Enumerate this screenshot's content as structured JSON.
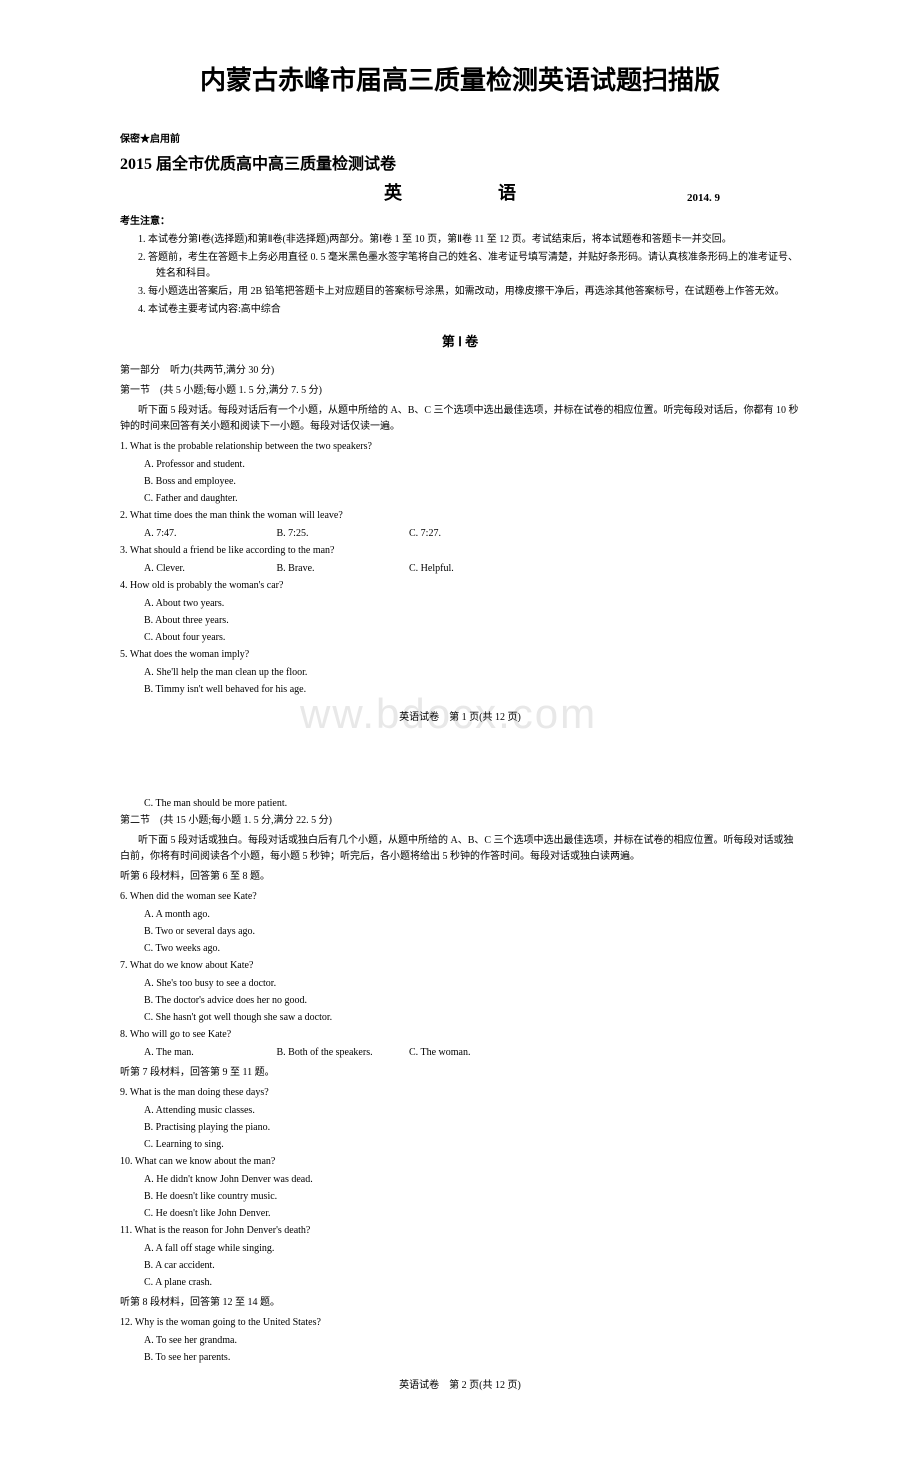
{
  "page_title": "内蒙古赤峰市届高三质量检测英语试题扫描版",
  "watermark": "ww.bdocx.com",
  "confidential": "保密★启用前",
  "exam": {
    "title_line1": "2015 届全市优质高中高三质量检测试卷",
    "title_line2": "英　　语",
    "date": "2014. 9"
  },
  "notice": {
    "header": "考生注意：",
    "items": [
      "1. 本试卷分第Ⅰ卷(选择题)和第Ⅱ卷(非选择题)两部分。第Ⅰ卷 1 至 10 页，第Ⅱ卷 11 至 12 页。考试结束后，将本试题卷和答题卡一并交回。",
      "2. 答题前，考生在答题卡上务必用直径 0. 5 毫米黑色墨水签字笔将自己的姓名、准考证号填写清楚，并贴好条形码。请认真核准条形码上的准考证号、姓名和科目。",
      "3. 每小题选出答案后，用 2B 铅笔把答题卡上对应题目的答案标号涂黑，如需改动，用橡皮擦干净后，再选涂其他答案标号，在试题卷上作答无效。",
      "4. 本试卷主要考试内容:高中综合"
    ]
  },
  "part1_header": "第 Ⅰ 卷",
  "section1": {
    "title": "第一部分　听力(共两节,满分 30 分)",
    "sub1": "第一节　(共 5 小题;每小题 1. 5 分,满分 7. 5 分)",
    "instruction1": "听下面 5 段对话。每段对话后有一个小题，从题中所给的 A、B、C 三个选项中选出最佳选项，并标在试卷的相应位置。听完每段对话后，你都有 10 秒钟的时间来回答有关小题和阅读下一小题。每段对话仅读一遍。"
  },
  "questions_p1": [
    {
      "q": "1. What is the probable relationship between the two speakers?",
      "opts": [
        "A. Professor and student.",
        "B. Boss and employee.",
        "C. Father and daughter."
      ]
    },
    {
      "q": "2. What time does the man think the woman will leave?",
      "opts_row": [
        "A. 7:47.",
        "B. 7:25.",
        "C. 7:27."
      ]
    },
    {
      "q": "3. What should a friend be like according to the man?",
      "opts_row": [
        "A. Clever.",
        "B. Brave.",
        "C. Helpful."
      ]
    },
    {
      "q": "4. How old is probably the woman's car?",
      "opts": [
        "A. About two years.",
        "B. About three years.",
        "C. About four years."
      ]
    },
    {
      "q": "5. What does the woman imply?",
      "opts": [
        "A. She'll help the man clean up the floor.",
        "B. Timmy isn't well behaved for his age."
      ]
    }
  ],
  "footer1": "英语试卷　第 1 页(共 12 页)",
  "q5_cont": "C. The man should be more patient.",
  "section2": {
    "sub": "第二节　(共 15 小题;每小题 1. 5 分,满分 22. 5 分)",
    "instruction": "听下面 5 段对话或独白。每段对话或独白后有几个小题，从题中所给的 A、B、C 三个选项中选出最佳选项，并标在试卷的相应位置。听每段对话或独白前，你将有时间阅读各个小题，每小题 5 秒钟；听完后，各小题将给出 5 秒钟的作答时间。每段对话或独白读两遍。"
  },
  "material6": "听第 6 段材料，回答第 6 至 8 题。",
  "questions_p2a": [
    {
      "q": "6. When did the woman see Kate?",
      "opts": [
        "A. A month ago.",
        "B. Two or several days ago.",
        "C. Two weeks ago."
      ]
    },
    {
      "q": "7. What do we know about Kate?",
      "opts": [
        "A. She's too busy to see a doctor.",
        "B. The doctor's advice does her no good.",
        "C. She hasn't got well though she saw a doctor."
      ]
    },
    {
      "q": "8. Who will go to see Kate?",
      "opts_row": [
        "A. The man.",
        "B. Both of the speakers.",
        "C. The woman."
      ]
    }
  ],
  "material7": "听第 7 段材料，回答第 9 至 11 题。",
  "questions_p2b": [
    {
      "q": "9. What is the man doing these days?",
      "opts": [
        "A. Attending music classes.",
        "B. Practising playing the piano.",
        "C. Learning to sing."
      ]
    },
    {
      "q": "10. What can we know about the man?",
      "opts": [
        "A. He didn't know John Denver was dead.",
        "B. He doesn't like country music.",
        "C. He doesn't like John Denver."
      ]
    },
    {
      "q": "11. What is the reason for John Denver's death?",
      "opts": [
        "A. A fall off stage while singing.",
        "B. A car accident.",
        "C. A plane crash."
      ]
    }
  ],
  "material8": "听第 8 段材料，回答第 12 至 14 题。",
  "questions_p2c": [
    {
      "q": "12. Why is the woman going to the United States?",
      "opts": [
        "A. To see her grandma.",
        "B. To see her parents."
      ]
    }
  ],
  "footer2": "英语试卷　第 2 页(共 12 页)"
}
